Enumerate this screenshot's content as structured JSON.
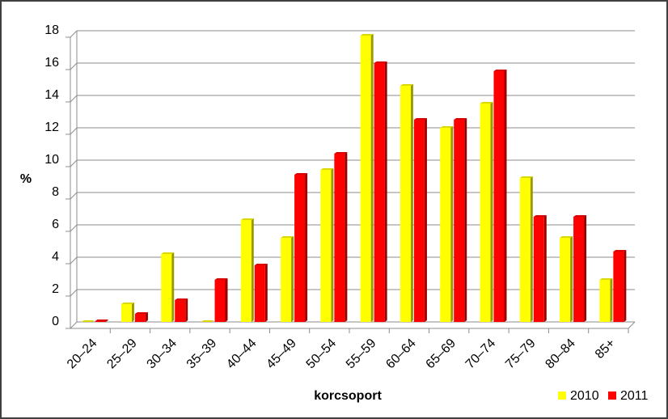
{
  "chart_data": {
    "type": "bar",
    "y_label": "%",
    "x_label": "korcsoport",
    "categories": [
      "20–24",
      "25–29",
      "30–34",
      "35–39",
      "40–44",
      "45–49",
      "50–54",
      "55–59",
      "60–64",
      "65–69",
      "70–74",
      "75–79",
      "80–84",
      "85+"
    ],
    "series": [
      {
        "name": "2010",
        "color": "#ffff00",
        "values": [
          0,
          1.1,
          4.2,
          0,
          6.3,
          5.2,
          9.4,
          17.7,
          14.6,
          12.0,
          13.5,
          8.9,
          5.2,
          2.6
        ]
      },
      {
        "name": "2011",
        "color": "#ff0000",
        "values": [
          0.05,
          0.5,
          1.35,
          2.6,
          3.5,
          9.1,
          10.4,
          16.0,
          12.5,
          12.5,
          15.5,
          6.5,
          6.5,
          4.35
        ]
      }
    ],
    "ylim": [
      0,
      18
    ],
    "yticks": [
      0,
      2,
      4,
      6,
      8,
      10,
      12,
      14,
      16,
      18
    ],
    "grid": true,
    "legend": "bottom-right"
  }
}
